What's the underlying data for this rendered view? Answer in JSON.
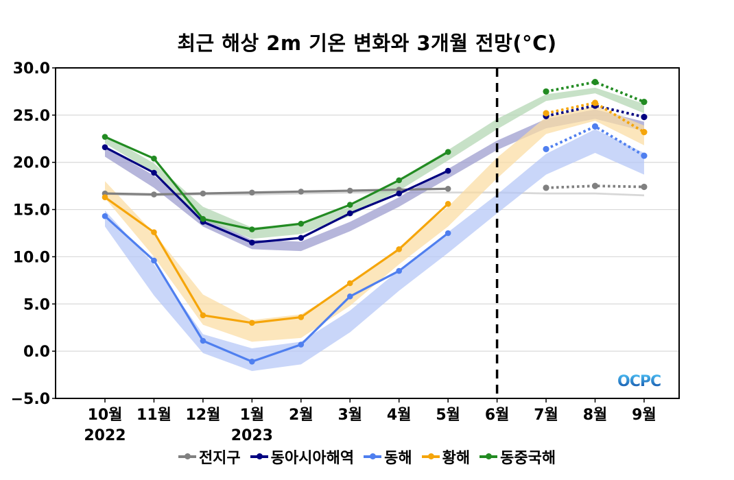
{
  "chart_data": {
    "type": "line",
    "title": "최근 해상 2m 기온 변화와 3개월 전망(°C)",
    "xlabel": "",
    "ylabel": "",
    "ylim": [
      -5,
      30
    ],
    "yticks": [
      "30.0",
      "25.0",
      "20.0",
      "15.0",
      "10.0",
      "5.0",
      "0.0",
      "−5.0"
    ],
    "ytick_values": [
      30,
      25,
      20,
      15,
      10,
      5,
      0,
      -5
    ],
    "categories": [
      "10월",
      "11월",
      "12월",
      "1월",
      "2월",
      "3월",
      "4월",
      "5월",
      "6월",
      "7월",
      "8월",
      "9월"
    ],
    "year_labels": [
      {
        "index": 0,
        "label": "2022"
      },
      {
        "index": 3,
        "label": "2023"
      }
    ],
    "forecast_divider_index": 8,
    "grid": true,
    "legend_position": "bottom",
    "series": [
      {
        "name": "전지구",
        "color": "#808080",
        "band_color": "#c8c8c8",
        "observed": [
          16.7,
          16.6,
          16.7,
          16.8,
          16.9,
          17.0,
          17.1,
          17.2
        ],
        "forecast": [
          17.3,
          17.5,
          17.4
        ],
        "band_low": [
          16.5,
          16.4,
          16.5,
          16.5,
          16.6,
          16.7,
          16.7,
          16.7,
          16.7,
          16.6,
          16.6,
          16.4
        ],
        "band_high": [
          16.7,
          16.6,
          16.7,
          16.7,
          16.8,
          16.9,
          16.9,
          16.9,
          16.9,
          16.8,
          16.8,
          16.6
        ]
      },
      {
        "name": "동아시아해역",
        "color": "#000080",
        "band_color": "#9a9acd",
        "observed": [
          21.6,
          18.9,
          13.7,
          11.5,
          12.0,
          14.6,
          16.7,
          19.1
        ],
        "forecast": [
          24.9,
          26.0,
          24.8
        ],
        "band_low": [
          20.6,
          17.3,
          13.2,
          10.8,
          10.6,
          12.7,
          15.3,
          18.3,
          21.3,
          23.6,
          24.6,
          23.3
        ],
        "band_high": [
          21.6,
          18.6,
          14.2,
          11.8,
          11.6,
          13.7,
          16.3,
          19.3,
          22.3,
          24.6,
          25.6,
          24.3
        ]
      },
      {
        "name": "동해",
        "color": "#4f7fef",
        "band_color": "#b4c6f7",
        "observed": [
          14.3,
          9.6,
          1.1,
          -1.1,
          0.7,
          5.8,
          8.5,
          12.5
        ],
        "forecast": [
          21.4,
          23.8,
          20.7
        ],
        "band_low": [
          13.2,
          5.9,
          -0.2,
          -2.1,
          -1.4,
          2.0,
          6.4,
          10.4,
          14.6,
          18.7,
          21.0,
          18.7
        ],
        "band_high": [
          14.9,
          9.2,
          1.8,
          0.3,
          1.0,
          4.3,
          8.6,
          12.6,
          16.6,
          20.9,
          23.5,
          21.0
        ]
      },
      {
        "name": "황해",
        "color": "#f5a50a",
        "band_color": "#fbdca2",
        "observed": [
          16.3,
          12.6,
          3.8,
          3.0,
          3.6,
          7.2,
          10.8,
          15.6
        ],
        "forecast": [
          25.2,
          26.3,
          23.2
        ],
        "band_low": [
          16.2,
          10.0,
          2.8,
          1.0,
          1.4,
          4.8,
          9.2,
          13.2,
          18.3,
          23.0,
          24.4,
          21.8
        ],
        "band_high": [
          18.0,
          12.5,
          6.0,
          3.3,
          3.9,
          7.0,
          11.0,
          15.3,
          20.5,
          24.8,
          26.0,
          23.9
        ]
      },
      {
        "name": "동중국해",
        "color": "#228b22",
        "band_color": "#b2d6b2",
        "observed": [
          22.7,
          20.4,
          14.0,
          12.9,
          13.5,
          15.5,
          18.1,
          21.1
        ],
        "forecast": [
          27.5,
          28.5,
          26.4
        ],
        "band_low": [
          22.0,
          18.9,
          13.9,
          11.9,
          12.4,
          14.3,
          17.0,
          20.2,
          23.5,
          26.5,
          27.3,
          25.2
        ],
        "band_high": [
          22.9,
          19.9,
          15.3,
          13.1,
          13.5,
          15.3,
          18.2,
          21.3,
          24.6,
          27.2,
          27.9,
          26.2
        ]
      }
    ]
  },
  "watermark": "OCPC"
}
